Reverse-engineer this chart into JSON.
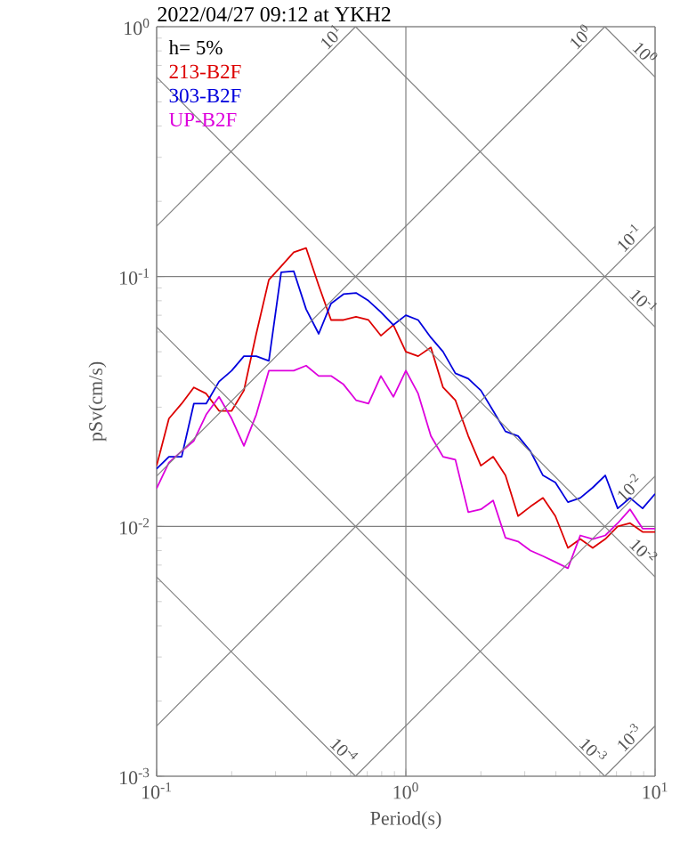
{
  "chart_data": {
    "type": "line",
    "title": "2022/04/27 09:12 at YKH2",
    "xlabel": "Period(s)",
    "ylabel": "pSv(cm/s)",
    "legend_title": "h= 5%",
    "legend": "top left",
    "log": "xy",
    "grid": true,
    "xlim": [
      0.1,
      10
    ],
    "ylim": [
      0.001,
      1
    ],
    "xticks": [
      {
        "value": 0.1,
        "label": "10$^{-1}$"
      },
      {
        "value": 1,
        "label": "10$^{0}$"
      },
      {
        "value": 10,
        "label": "10$^{1}$"
      }
    ],
    "yticks": [
      {
        "value": 0.001,
        "label": "10$^{-3}$"
      },
      {
        "value": 0.01,
        "label": "10$^{-2}$"
      },
      {
        "value": 0.1,
        "label": "10$^{-1}$"
      },
      {
        "value": 1,
        "label": "10$^{0}$"
      }
    ],
    "x": [
      0.1,
      0.112,
      0.126,
      0.141,
      0.158,
      0.178,
      0.2,
      0.224,
      0.251,
      0.282,
      0.316,
      0.355,
      0.398,
      0.447,
      0.501,
      0.562,
      0.631,
      0.708,
      0.794,
      0.891,
      1,
      1.12,
      1.26,
      1.41,
      1.58,
      1.78,
      2,
      2.24,
      2.51,
      2.82,
      3.16,
      3.55,
      3.98,
      4.47,
      5.01,
      5.62,
      6.31,
      7.08,
      7.94,
      8.91,
      10
    ],
    "series": [
      {
        "name": "213-B2F",
        "color": "#dd0000",
        "values": [
          0.0175,
          0.027,
          0.031,
          0.036,
          0.034,
          0.029,
          0.029,
          0.035,
          0.059,
          0.097,
          0.11,
          0.125,
          0.13,
          0.092,
          0.067,
          0.067,
          0.069,
          0.067,
          0.058,
          0.064,
          0.05,
          0.048,
          0.052,
          0.036,
          0.032,
          0.023,
          0.0175,
          0.019,
          0.016,
          0.011,
          0.012,
          0.013,
          0.011,
          0.0082,
          0.0089,
          0.0082,
          0.0089,
          0.01,
          0.0103,
          0.0095,
          0.0095
        ]
      },
      {
        "name": "303-B2F",
        "color": "#0000dd",
        "values": [
          0.017,
          0.019,
          0.019,
          0.031,
          0.031,
          0.038,
          0.042,
          0.048,
          0.048,
          0.046,
          0.104,
          0.105,
          0.074,
          0.059,
          0.078,
          0.085,
          0.086,
          0.08,
          0.072,
          0.064,
          0.07,
          0.067,
          0.057,
          0.05,
          0.041,
          0.039,
          0.035,
          0.029,
          0.024,
          0.023,
          0.02,
          0.016,
          0.015,
          0.0125,
          0.013,
          0.0143,
          0.016,
          0.0118,
          0.013,
          0.0118,
          0.0135
        ]
      },
      {
        "name": "UP-B2F",
        "color": "#dd00dd",
        "values": [
          0.0142,
          0.018,
          0.02,
          0.022,
          0.028,
          0.033,
          0.027,
          0.021,
          0.028,
          0.042,
          0.042,
          0.042,
          0.044,
          0.04,
          0.04,
          0.037,
          0.032,
          0.031,
          0.04,
          0.033,
          0.042,
          0.034,
          0.023,
          0.019,
          0.0185,
          0.0114,
          0.0117,
          0.0127,
          0.009,
          0.0087,
          0.008,
          0.0076,
          0.0072,
          0.0068,
          0.0092,
          0.0089,
          0.0092,
          0.0103,
          0.0117,
          0.0098,
          0.0098
        ]
      },
      {
        "name": "10$^{0}$",
        "color": "#808080",
        "x": [
          6.283,
          10
        ],
        "values": [
          1,
          0.628
        ]
      },
      {
        "name": "10$^{-1}$",
        "color": "#808080",
        "x": [
          0.628,
          10
        ],
        "values": [
          1,
          0.0628
        ]
      },
      {
        "name": "10$^{-2}$",
        "color": "#808080",
        "x": [
          0.1,
          10
        ],
        "values": [
          0.628,
          0.00628
        ]
      },
      {
        "name": "10$^{-3}$",
        "color": "#808080",
        "x": [
          0.1,
          6.283
        ],
        "values": [
          0.0628,
          0.001
        ]
      },
      {
        "name": "10$^{-4}$",
        "color": "#808080",
        "x": [
          0.1,
          0.628
        ],
        "values": [
          0.00628,
          0.001
        ]
      },
      {
        "name": "10$^{1}$",
        "color": "#808080",
        "x": [
          0.1,
          0.628
        ],
        "values": [
          0.159,
          1
        ]
      },
      {
        "name": "10$^{0}$",
        "color": "#808080",
        "x": [
          0.1,
          6.283
        ],
        "values": [
          0.0159,
          1
        ]
      },
      {
        "name": "10$^{-1}$",
        "color": "#808080",
        "x": [
          0.1,
          10
        ],
        "values": [
          0.00159,
          0.159
        ]
      },
      {
        "name": "10$^{-2}$",
        "color": "#808080",
        "x": [
          0.628,
          10
        ],
        "values": [
          0.001,
          0.0159
        ]
      },
      {
        "name": "10$^{-3}$",
        "color": "#808080",
        "x": [
          6.283,
          10
        ],
        "values": [
          0.001,
          0.00159
        ]
      }
    ]
  }
}
